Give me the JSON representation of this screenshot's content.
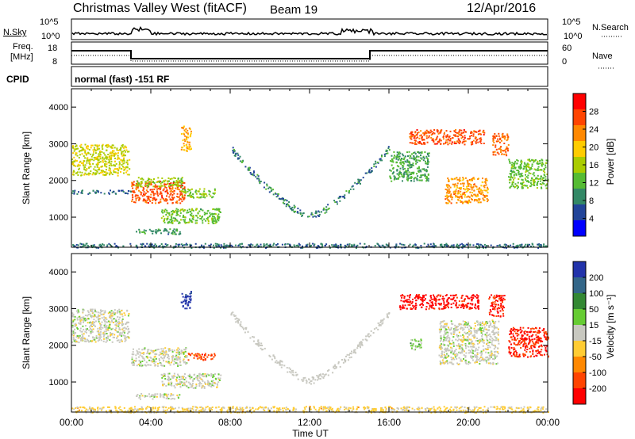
{
  "header": {
    "station": "Christmas Valley West (fitACF)",
    "beam": "Beam 19",
    "date": "12/Apr/2016"
  },
  "summary": {
    "nsky_label": "N.Sky",
    "nsearch_label": "N.Search",
    "nsky_ticks": [
      "10^5",
      "10^0"
    ],
    "freq_label_1": "Freq.",
    "freq_label_2": "[MHz]",
    "freq_ticks": [
      "18",
      "8"
    ],
    "nave_label": "Nave",
    "nave_ticks": [
      "60",
      "0"
    ],
    "cpid_label": "CPID",
    "cpid_text": "normal (fast) -151 RF"
  },
  "power_panel": {
    "ylabel": "Slant Range [km]",
    "colorbar_label": "Power [dB]",
    "colorbar_ticks": [
      "28",
      "24",
      "20",
      "16",
      "12",
      "8",
      "4"
    ]
  },
  "velocity_panel": {
    "ylabel": "Slant Range [km]",
    "colorbar_label": "Velocity [m s⁻¹]",
    "colorbar_ticks": [
      "200",
      "100",
      "50",
      "15",
      "-15",
      "-50",
      "-100",
      "-200"
    ]
  },
  "xaxis": {
    "label": "Time UT",
    "ticks": [
      "00:00",
      "04:00",
      "08:00",
      "12:00",
      "16:00",
      "20:00",
      "00:00"
    ]
  },
  "colors": {
    "power_scale": [
      "#ff0000",
      "#ff4400",
      "#ff8800",
      "#ffcc00",
      "#aacc00",
      "#55bb33",
      "#338866",
      "#224499",
      "#0000ff"
    ],
    "velocity_scale": [
      "#2233aa",
      "#336688",
      "#338833",
      "#66cc33",
      "#c8c8c0",
      "#ffcc33",
      "#ff8800",
      "#ff4400",
      "#ff0000"
    ]
  },
  "chart_data": [
    {
      "type": "heatmap",
      "name": "power",
      "xlabel": "Time UT",
      "ylabel": "Slant Range [km]",
      "xlim": [
        0,
        24
      ],
      "ylim": [
        180,
        4500
      ],
      "yticks": [
        1000,
        2000,
        3000,
        4000
      ],
      "clim": [
        0,
        30
      ],
      "regions": [
        {
          "t": [
            0,
            2.9
          ],
          "r": [
            2150,
            3000
          ],
          "v": 16
        },
        {
          "t": [
            0,
            3
          ],
          "r": [
            1650,
            1750
          ],
          "v": 6
        },
        {
          "t": [
            3,
            5.7
          ],
          "r": [
            1400,
            2000
          ],
          "v": 26
        },
        {
          "t": [
            3.2,
            5.6
          ],
          "r": [
            1850,
            2100
          ],
          "v": 14
        },
        {
          "t": [
            3.2,
            5.5
          ],
          "r": [
            550,
            700
          ],
          "v": 8
        },
        {
          "t": [
            4.5,
            7.5
          ],
          "r": [
            850,
            1250
          ],
          "v": 12
        },
        {
          "t": [
            5.5,
            7.2
          ],
          "r": [
            1550,
            1800
          ],
          "v": 13
        },
        {
          "t": [
            5.5,
            6.0
          ],
          "r": [
            2800,
            3500
          ],
          "v": 20
        },
        {
          "t": [
            17,
            20.8
          ],
          "r": [
            3000,
            3400
          ],
          "v": 26
        },
        {
          "t": [
            18.8,
            21.0
          ],
          "r": [
            1400,
            2100
          ],
          "v": 22
        },
        {
          "t": [
            16,
            18
          ],
          "r": [
            2000,
            2800
          ],
          "v": 10
        },
        {
          "t": [
            21.2,
            22
          ],
          "r": [
            2700,
            3300
          ],
          "v": 24
        },
        {
          "t": [
            22,
            24
          ],
          "r": [
            1800,
            2600
          ],
          "v": 12
        },
        {
          "t": [
            0,
            24
          ],
          "r": [
            180,
            300
          ],
          "v": 6
        }
      ],
      "arc": {
        "t": [
          8,
          16
        ],
        "r_start": 2900,
        "r_min": 1050,
        "v": 7
      }
    },
    {
      "type": "heatmap",
      "name": "velocity",
      "xlabel": "Time UT",
      "ylabel": "Slant Range [km]",
      "xlim": [
        0,
        24
      ],
      "ylim": [
        180,
        4500
      ],
      "yticks": [
        1000,
        2000,
        3000,
        4000
      ],
      "clim": [
        -200,
        200
      ],
      "regions": [
        {
          "t": [
            0,
            2.9
          ],
          "r": [
            2100,
            3000
          ],
          "v": 0
        },
        {
          "t": [
            3,
            5.8
          ],
          "r": [
            1450,
            1950
          ],
          "v": 0
        },
        {
          "t": [
            3.2,
            5.5
          ],
          "r": [
            550,
            700
          ],
          "v": 0
        },
        {
          "t": [
            4.5,
            7.5
          ],
          "r": [
            850,
            1250
          ],
          "v": 0
        },
        {
          "t": [
            5.8,
            7.2
          ],
          "r": [
            1600,
            1800
          ],
          "v": -150
        },
        {
          "t": [
            5.5,
            6.0
          ],
          "r": [
            3000,
            3500
          ],
          "v": 200
        },
        {
          "t": [
            16.5,
            20.5
          ],
          "r": [
            3000,
            3400
          ],
          "v": -200
        },
        {
          "t": [
            18.5,
            21.5
          ],
          "r": [
            1500,
            2700
          ],
          "v": 0
        },
        {
          "t": [
            21.0,
            21.8
          ],
          "r": [
            2800,
            3400
          ],
          "v": -180
        },
        {
          "t": [
            22,
            24
          ],
          "r": [
            1700,
            2500
          ],
          "v": -180
        },
        {
          "t": [
            17.0,
            17.6
          ],
          "r": [
            1900,
            2200
          ],
          "v": 40
        },
        {
          "t": [
            0,
            24
          ],
          "r": [
            180,
            350
          ],
          "v": -40
        }
      ],
      "arc": {
        "t": [
          8,
          16
        ],
        "r_start": 2900,
        "r_min": 1050,
        "v": 20
      }
    }
  ]
}
